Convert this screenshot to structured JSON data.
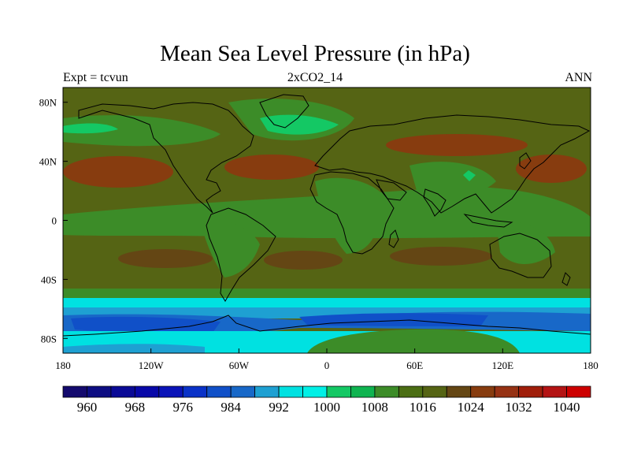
{
  "title": "Mean Sea Level Pressure (in hPa)",
  "subtitle_left": "Expt = tcvun",
  "subtitle_center": "2xCO2_14",
  "subtitle_right": "ANN",
  "lat_ticks": [
    {
      "value": 80,
      "label": "80N"
    },
    {
      "value": 40,
      "label": "40N"
    },
    {
      "value": 0,
      "label": "0"
    },
    {
      "value": -40,
      "label": "40S"
    },
    {
      "value": -80,
      "label": "80S"
    }
  ],
  "lon_ticks": [
    {
      "value": -180,
      "label": "180"
    },
    {
      "value": -120,
      "label": "120W"
    },
    {
      "value": -60,
      "label": "60W"
    },
    {
      "value": 0,
      "label": "0"
    },
    {
      "value": 60,
      "label": "60E"
    },
    {
      "value": 120,
      "label": "120E"
    },
    {
      "value": 180,
      "label": "180"
    }
  ],
  "map_extent": {
    "lon": [
      -180,
      180
    ],
    "lat": [
      -90,
      90
    ]
  },
  "colorbar": {
    "colors": [
      "#140a6e",
      "#0d0d82",
      "#0a0a96",
      "#0808a8",
      "#0a14b8",
      "#0a32c8",
      "#1050c8",
      "#1868c8",
      "#1ea0d2",
      "#00e1e1",
      "#00f0e6",
      "#14c864",
      "#0fb450",
      "#3c8c28",
      "#4b6e14",
      "#556414",
      "#644614",
      "#873c0f",
      "#963214",
      "#a01e0a",
      "#b41414",
      "#cd0000"
    ],
    "labels": [
      {
        "value": 960,
        "label": "960"
      },
      {
        "value": 968,
        "label": "968"
      },
      {
        "value": 976,
        "label": "976"
      },
      {
        "value": 984,
        "label": "984"
      },
      {
        "value": 992,
        "label": "992"
      },
      {
        "value": 1000,
        "label": "1000"
      },
      {
        "value": 1008,
        "label": "1008"
      },
      {
        "value": 1016,
        "label": "1016"
      },
      {
        "value": 1024,
        "label": "1024"
      },
      {
        "value": 1032,
        "label": "1032"
      },
      {
        "value": 1040,
        "label": "1040"
      }
    ],
    "min": 956,
    "step": 4
  },
  "field_colors": {
    "background": "#556414",
    "high": "#873c0f",
    "mid_high": "#644614",
    "low_green": "#3c8c28",
    "bright_green": "#14c864",
    "cyan": "#00e1e1",
    "light_blue": "#1ea0d2",
    "blue": "#1868c8",
    "deep_blue": "#1050c8"
  }
}
